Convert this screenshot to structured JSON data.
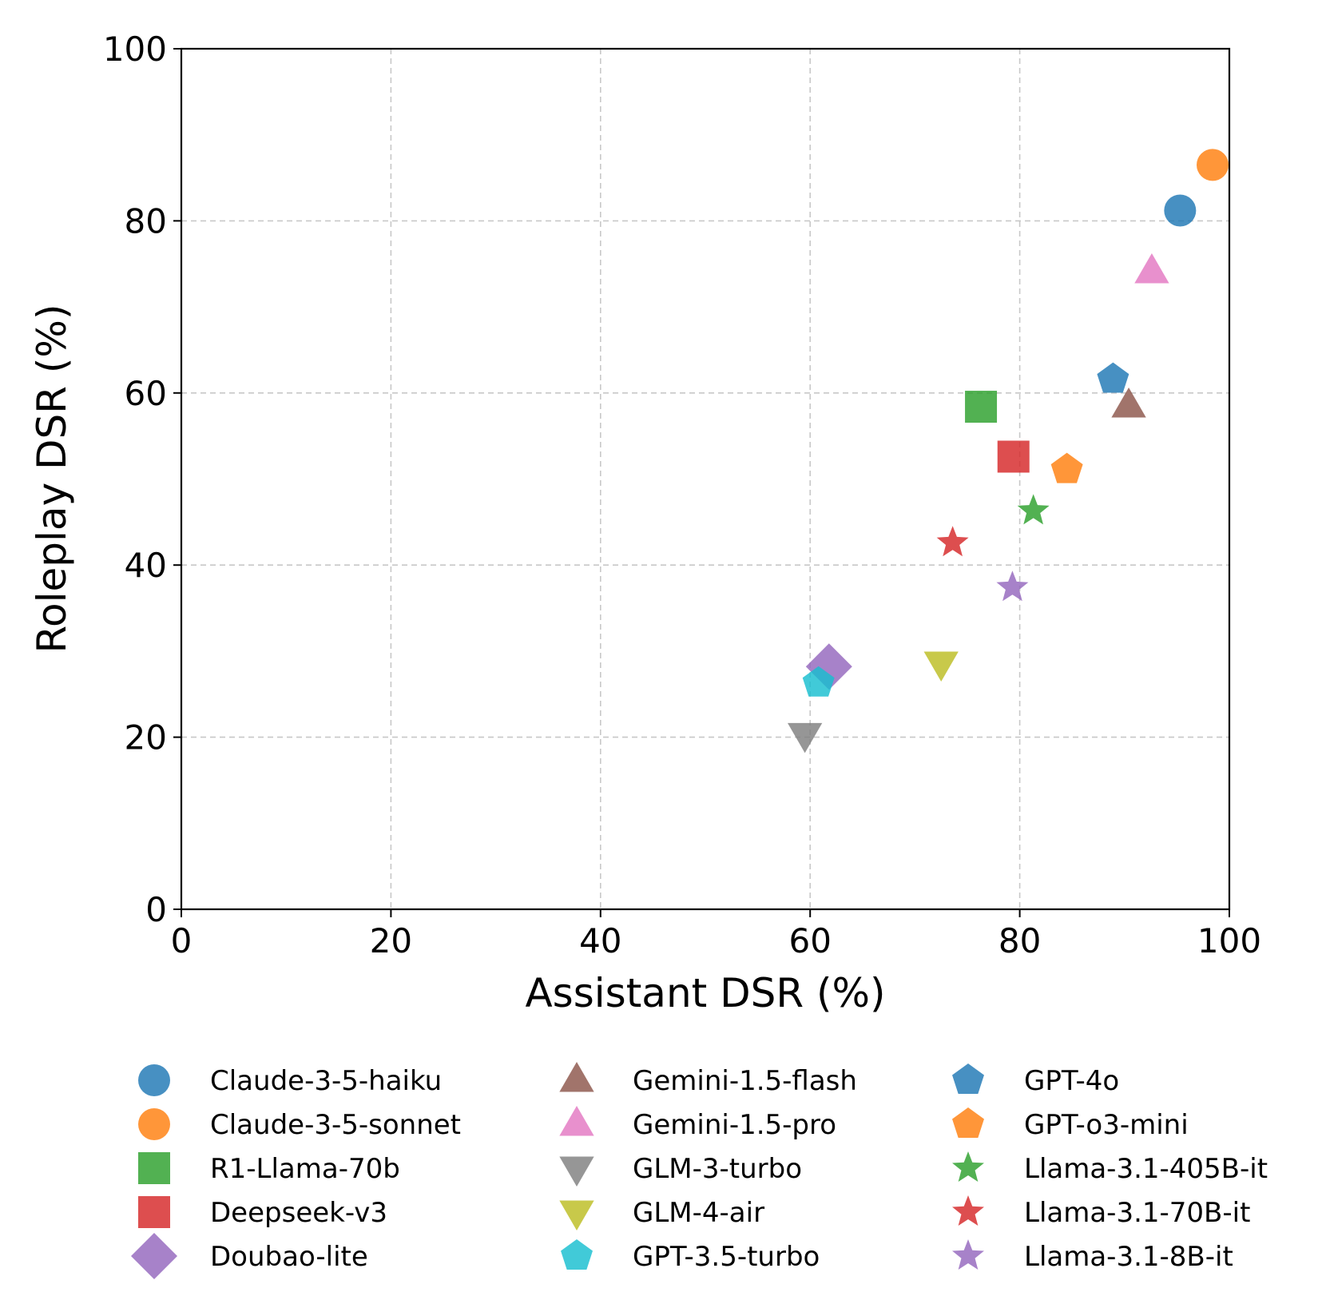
{
  "chart_data": {
    "type": "scatter",
    "title": "",
    "xlabel": "Assistant DSR (%)",
    "ylabel": "Roleplay DSR (%)",
    "xlim": [
      0,
      100
    ],
    "ylim": [
      0,
      100
    ],
    "xticks": [
      0,
      20,
      40,
      60,
      80,
      100
    ],
    "yticks": [
      0,
      20,
      40,
      60,
      80,
      100
    ],
    "grid": true,
    "legend_position": "bottom",
    "series": [
      {
        "name": "Claude-3-5-haiku",
        "marker": "circle",
        "color": "#1f77b4",
        "x": 95.3,
        "y": 81.2
      },
      {
        "name": "Claude-3-5-sonnet",
        "marker": "circle",
        "color": "#ff7f0e",
        "x": 98.4,
        "y": 86.5
      },
      {
        "name": "R1-Llama-70b",
        "marker": "square",
        "color": "#2ca02c",
        "x": 76.3,
        "y": 58.4
      },
      {
        "name": "Deepseek-v3",
        "marker": "square",
        "color": "#d62728",
        "x": 79.4,
        "y": 52.6
      },
      {
        "name": "Doubao-lite",
        "marker": "diamond",
        "color": "#9467bd",
        "x": 61.8,
        "y": 28.2
      },
      {
        "name": "Gemini-1.5-flash",
        "marker": "triangle-up",
        "color": "#8c564b",
        "x": 90.4,
        "y": 58.5
      },
      {
        "name": "Gemini-1.5-pro",
        "marker": "triangle-up",
        "color": "#e377c2",
        "x": 92.6,
        "y": 74.1
      },
      {
        "name": "GLM-3-turbo",
        "marker": "triangle-down",
        "color": "#7f7f7f",
        "x": 59.5,
        "y": 20.3
      },
      {
        "name": "GLM-4-air",
        "marker": "triangle-down",
        "color": "#bcbd22",
        "x": 72.5,
        "y": 28.6
      },
      {
        "name": "GPT-3.5-turbo",
        "marker": "pentagon",
        "color": "#17becf",
        "x": 60.8,
        "y": 26.3
      },
      {
        "name": "GPT-4o",
        "marker": "pentagon",
        "color": "#1f77b4",
        "x": 88.9,
        "y": 61.6
      },
      {
        "name": "GPT-o3-mini",
        "marker": "pentagon",
        "color": "#ff7f0e",
        "x": 84.5,
        "y": 51.1
      },
      {
        "name": "Llama-3.1-405B-it",
        "marker": "star",
        "color": "#2ca02c",
        "x": 81.3,
        "y": 46.3
      },
      {
        "name": "Llama-3.1-70B-it",
        "marker": "star",
        "color": "#d62728",
        "x": 73.6,
        "y": 42.6
      },
      {
        "name": "Llama-3.1-8B-it",
        "marker": "star",
        "color": "#9467bd",
        "x": 79.3,
        "y": 37.4
      }
    ]
  }
}
